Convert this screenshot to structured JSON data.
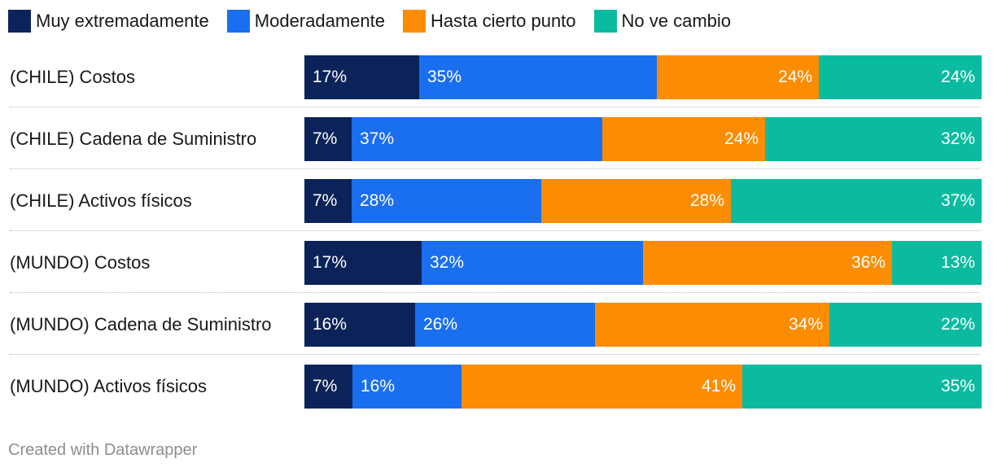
{
  "chart_data": {
    "type": "bar",
    "orientation": "horizontal",
    "stacked": true,
    "unit": "%",
    "categories": [
      "(CHILE) Costos",
      "(CHILE) Cadena de Suministro",
      "(CHILE) Activos físicos",
      "(MUNDO) Costos",
      "(MUNDO) Cadena de Suministro",
      "(MUNDO) Activos físicos"
    ],
    "series": [
      {
        "name": "Muy extremadamente",
        "color": "#0b2358",
        "values": [
          17,
          7,
          7,
          17,
          16,
          7
        ]
      },
      {
        "name": "Moderadamente",
        "color": "#1a6ef0",
        "values": [
          35,
          37,
          28,
          32,
          26,
          16
        ]
      },
      {
        "name": "Hasta cierto punto",
        "color": "#fc8c01",
        "values": [
          24,
          24,
          28,
          36,
          34,
          41
        ]
      },
      {
        "name": "No ve cambio",
        "color": "#0bbba0",
        "values": [
          24,
          32,
          37,
          13,
          22,
          35
        ]
      }
    ],
    "legend_position": "top-left"
  },
  "footer": {
    "credit": "Created with Datawrapper"
  }
}
